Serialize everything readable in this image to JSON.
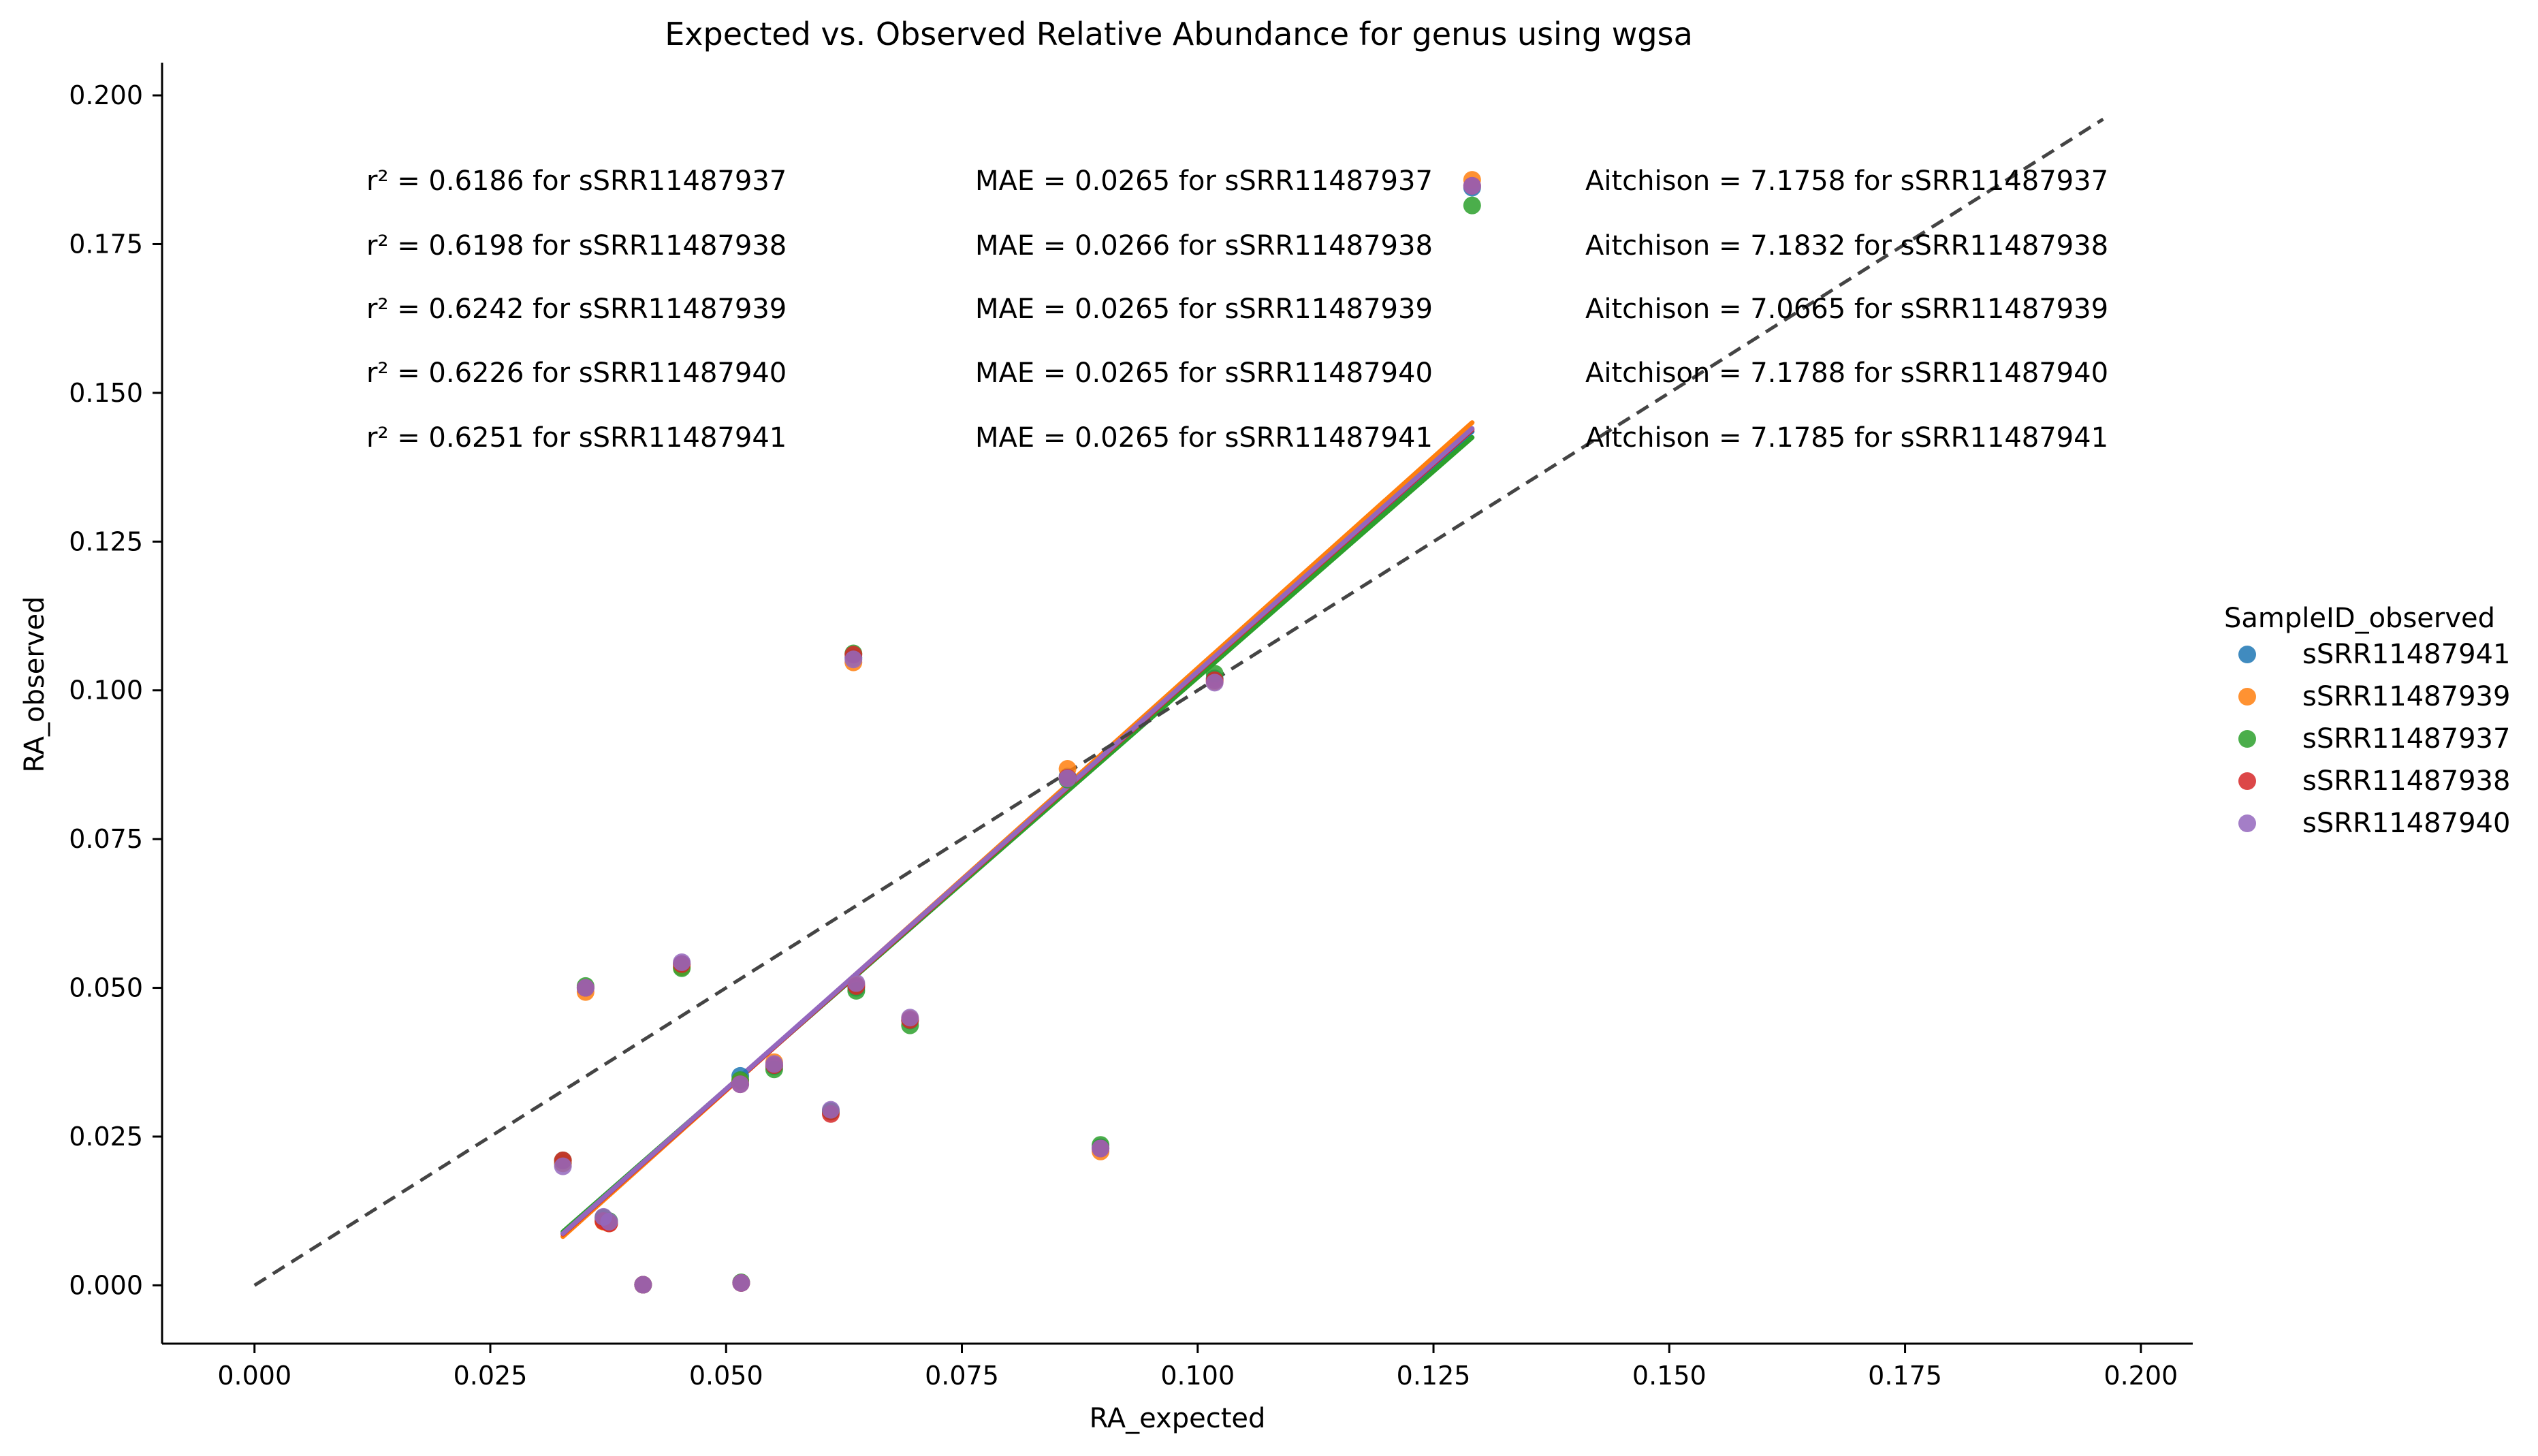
{
  "chart_data": {
    "type": "scatter",
    "title": "Expected vs. Observed Relative Abundance for genus using wgsa",
    "xlabel": "RA_expected",
    "ylabel": "RA_observed",
    "xlim": [
      -0.0098,
      0.2055
    ],
    "ylim": [
      -0.0098,
      0.2055
    ],
    "xticks": [
      "0.000",
      "0.025",
      "0.050",
      "0.075",
      "0.100",
      "0.125",
      "0.150",
      "0.175",
      "0.200"
    ],
    "yticks": [
      "0.000",
      "0.025",
      "0.050",
      "0.075",
      "0.100",
      "0.125",
      "0.150",
      "0.175",
      "0.200"
    ],
    "grid": false,
    "legend": {
      "title": "SampleID_observed",
      "placement": "right",
      "entries": [
        "sSRR11487941",
        "sSRR11487939",
        "sSRR11487937",
        "sSRR11487938",
        "sSRR11487940"
      ]
    },
    "identity_line": {
      "from": [
        0.0,
        0.0
      ],
      "to": [
        0.196,
        0.196
      ],
      "style": "dashed",
      "color": "#444444"
    },
    "series": [
      {
        "name": "sSRR11487941",
        "color": "#1f77b4",
        "x": [
          0.0327,
          0.0351,
          0.037,
          0.0376,
          0.0412,
          0.0453,
          0.0515,
          0.0516,
          0.0551,
          0.0611,
          0.0635,
          0.0638,
          0.0695,
          0.0862,
          0.0897,
          0.1018,
          0.1291
        ],
        "y": [
          0.0205,
          0.05,
          0.0112,
          0.0106,
          0.0001,
          0.054,
          0.0352,
          0.0004,
          0.0368,
          0.0293,
          0.1055,
          0.05,
          0.0445,
          0.0855,
          0.0232,
          0.102,
          0.1845
        ],
        "fit": {
          "x": [
            0.0327,
            0.1291
          ],
          "y": [
            0.0087,
            0.1435
          ]
        }
      },
      {
        "name": "sSRR11487939",
        "color": "#ff7f0e",
        "x": [
          0.0327,
          0.0351,
          0.037,
          0.0376,
          0.0412,
          0.0453,
          0.0515,
          0.0516,
          0.0551,
          0.0611,
          0.0635,
          0.0638,
          0.0695,
          0.0862,
          0.0897,
          0.1018,
          0.1291
        ],
        "y": [
          0.0205,
          0.0493,
          0.0107,
          0.0104,
          0.0001,
          0.0535,
          0.0343,
          0.0004,
          0.0375,
          0.0292,
          0.1047,
          0.0505,
          0.0448,
          0.0868,
          0.0225,
          0.1015,
          0.1858
        ],
        "fit": {
          "x": [
            0.0327,
            0.1291
          ],
          "y": [
            0.0082,
            0.145
          ]
        }
      },
      {
        "name": "sSRR11487937",
        "color": "#2ca02c",
        "x": [
          0.0327,
          0.0351,
          0.037,
          0.0376,
          0.0412,
          0.0453,
          0.0515,
          0.0516,
          0.0551,
          0.0611,
          0.0635,
          0.0638,
          0.0695,
          0.0862,
          0.0897,
          0.1018,
          0.1291
        ],
        "y": [
          0.021,
          0.0503,
          0.0114,
          0.0108,
          0.0001,
          0.0533,
          0.0345,
          0.0005,
          0.0363,
          0.0292,
          0.1062,
          0.0495,
          0.0437,
          0.085,
          0.0236,
          0.1028,
          0.1815
        ],
        "fit": {
          "x": [
            0.0327,
            0.1291
          ],
          "y": [
            0.009,
            0.1425
          ]
        }
      },
      {
        "name": "sSRR11487938",
        "color": "#d62728",
        "x": [
          0.0327,
          0.0351,
          0.037,
          0.0376,
          0.0412,
          0.0453,
          0.0515,
          0.0516,
          0.0551,
          0.0611,
          0.0635,
          0.0638,
          0.0695,
          0.0862,
          0.0897,
          0.1018,
          0.1291
        ],
        "y": [
          0.021,
          0.05,
          0.0108,
          0.0104,
          0.0001,
          0.054,
          0.0338,
          0.0004,
          0.037,
          0.0288,
          0.106,
          0.0503,
          0.0446,
          0.0853,
          0.023,
          0.1017,
          0.1848
        ],
        "fit": {
          "x": [
            0.0327,
            0.1291
          ],
          "y": [
            0.0086,
            0.1438
          ]
        }
      },
      {
        "name": "sSRR11487940",
        "color": "#9467bd",
        "x": [
          0.0327,
          0.0351,
          0.037,
          0.0376,
          0.0412,
          0.0453,
          0.0515,
          0.0516,
          0.0551,
          0.0611,
          0.0635,
          0.0638,
          0.0695,
          0.0862,
          0.0897,
          0.1018,
          0.1291
        ],
        "y": [
          0.02,
          0.05,
          0.0115,
          0.0107,
          0.0001,
          0.0543,
          0.0338,
          0.0004,
          0.0372,
          0.0295,
          0.1052,
          0.0508,
          0.045,
          0.0852,
          0.023,
          0.1013,
          0.1848
        ],
        "fit": {
          "x": [
            0.0327,
            0.1291
          ],
          "y": [
            0.0087,
            0.144
          ]
        }
      }
    ],
    "annotations": {
      "r2": [
        "r² = 0.6186 for sSRR11487937",
        "r² = 0.6198 for sSRR11487938",
        "r² = 0.6242 for sSRR11487939",
        "r² = 0.6226 for sSRR11487940",
        "r² = 0.6251 for sSRR11487941"
      ],
      "mae": [
        "MAE = 0.0265 for sSRR11487937",
        "MAE = 0.0266 for sSRR11487938",
        "MAE = 0.0265 for sSRR11487939",
        "MAE = 0.0265 for sSRR11487940",
        "MAE = 0.0265 for sSRR11487941"
      ],
      "aitchison": [
        "Aitchison = 7.1758 for sSRR11487937",
        "Aitchison = 7.1832 for sSRR11487938",
        "Aitchison = 7.0665 for sSRR11487939",
        "Aitchison = 7.1788 for sSRR11487940",
        "Aitchison = 7.1785 for sSRR11487941"
      ]
    }
  }
}
